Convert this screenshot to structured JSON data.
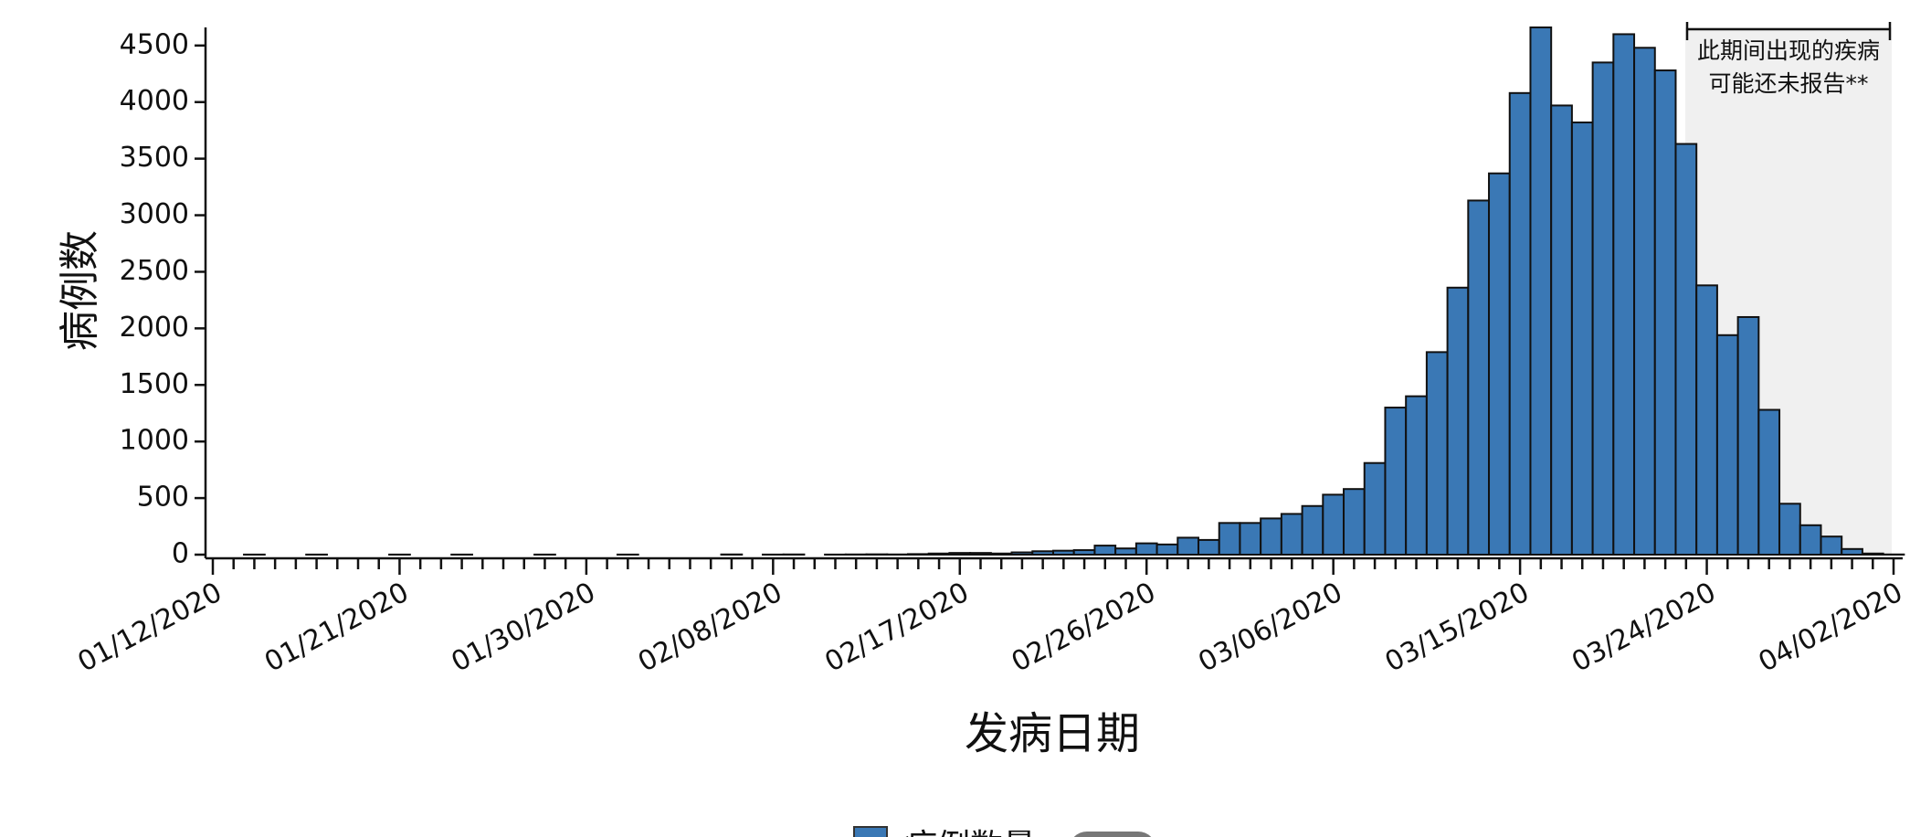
{
  "chart_data": {
    "type": "bar",
    "y_label": "病例数",
    "x_label": "发病日期",
    "annotation": [
      "此期间出现的疾病",
      "可能还未报告**"
    ],
    "categories": [
      "01/12/2020",
      null,
      null,
      null,
      null,
      null,
      null,
      null,
      null,
      "01/21/2020",
      null,
      null,
      null,
      null,
      null,
      null,
      null,
      null,
      "01/30/2020",
      null,
      null,
      null,
      null,
      null,
      null,
      null,
      null,
      "02/08/2020",
      null,
      null,
      null,
      null,
      null,
      null,
      null,
      null,
      "02/17/2020",
      null,
      null,
      null,
      null,
      null,
      null,
      null,
      null,
      "02/26/2020",
      null,
      null,
      null,
      null,
      null,
      null,
      null,
      null,
      "03/06/2020",
      null,
      null,
      null,
      null,
      null,
      null,
      null,
      null,
      "03/15/2020",
      null,
      null,
      null,
      null,
      null,
      null,
      null,
      null,
      "03/24/2020",
      null,
      null,
      null,
      null,
      null,
      null,
      null,
      null,
      "04/02/2020"
    ],
    "series": [
      {
        "name": "病例数量",
        "color": "#3a78b5",
        "values": [
          0,
          0,
          1,
          0,
          0,
          1,
          0,
          0,
          0,
          1,
          0,
          0,
          1,
          0,
          0,
          0,
          1,
          0,
          0,
          0,
          1,
          0,
          0,
          0,
          0,
          2,
          0,
          1,
          2,
          0,
          1,
          2,
          3,
          2,
          5,
          10,
          15,
          15,
          10,
          20,
          30,
          35,
          40,
          80,
          55,
          100,
          90,
          150,
          130,
          280,
          280,
          320,
          360,
          430,
          530,
          580,
          810,
          1300,
          1400,
          1790,
          2360,
          3130,
          3370,
          4080,
          4660,
          3970,
          3820,
          4350,
          4600,
          4480,
          4280,
          3630,
          2380,
          1940,
          2100,
          1280,
          450,
          260,
          160,
          50,
          10,
          2
        ]
      }
    ],
    "ylim": [
      0,
      4660
    ],
    "yticks": [
      0,
      500,
      1000,
      1500,
      2000,
      2500,
      3000,
      3500,
      4000,
      4500
    ]
  }
}
